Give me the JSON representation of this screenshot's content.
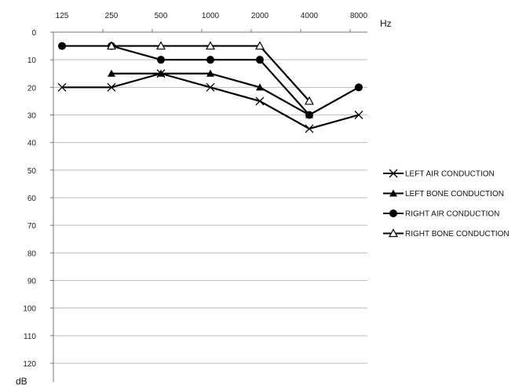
{
  "chart_data": {
    "type": "line",
    "x_unit": "Hz",
    "y_unit": "dB",
    "categories": [
      "125",
      "250",
      "500",
      "1000",
      "2000",
      "4000",
      "8000"
    ],
    "y_ticks": [
      "0",
      "10",
      "20",
      "30",
      "40",
      "50",
      "60",
      "70",
      "80",
      "90",
      "100",
      "110",
      "120"
    ],
    "ylim": [
      0,
      120
    ],
    "y_inverted": true,
    "grid": "horizontal",
    "legend_position": "right",
    "series": [
      {
        "name": "LEFT AIR CONDUCTION",
        "marker": "cross",
        "values": [
          20,
          20,
          15,
          20,
          25,
          35,
          30
        ]
      },
      {
        "name": "LEFT BONE CONDUCTION",
        "marker": "filled-triangle",
        "values": [
          null,
          15,
          15,
          15,
          20,
          30,
          null
        ]
      },
      {
        "name": "RIGHT AIR CONDUCTION",
        "marker": "filled-circle",
        "values": [
          5,
          5,
          10,
          10,
          10,
          30,
          20
        ]
      },
      {
        "name": "RIGHT BONE CONDUCTION",
        "marker": "open-triangle",
        "values": [
          null,
          5,
          5,
          5,
          5,
          25,
          null
        ]
      }
    ]
  }
}
